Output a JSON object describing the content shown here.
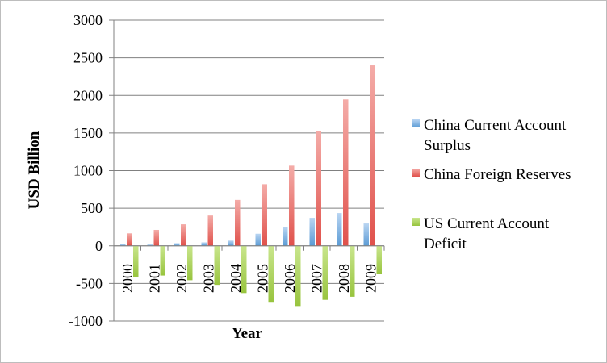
{
  "chart_data": {
    "type": "bar",
    "title": "",
    "xlabel": "Year",
    "ylabel": "USD Billion",
    "ylim": [
      -1000,
      3000
    ],
    "yticks": [
      3000,
      2500,
      2000,
      1500,
      1000,
      500,
      0,
      -500,
      -1000
    ],
    "grid": true,
    "legend_placement": "right",
    "categories": [
      "2000",
      "2001",
      "2002",
      "2003",
      "2004",
      "2005",
      "2006",
      "2007",
      "2008",
      "2009"
    ],
    "series": [
      {
        "name_lines": [
          "China Current Account",
          "Surplus"
        ],
        "color": "#5b9bd5",
        "values": [
          20,
          17,
          35,
          46,
          69,
          161,
          250,
          372,
          436,
          297
        ]
      },
      {
        "name_lines": [
          "China Foreign Reserves"
        ],
        "color": "#e8706b",
        "values": [
          166,
          212,
          286,
          403,
          610,
          819,
          1066,
          1528,
          1946,
          2399
        ]
      },
      {
        "name_lines": [
          "US Current Account",
          "Deficit"
        ],
        "color": "#a9d158",
        "values": [
          -410,
          -395,
          -457,
          -519,
          -628,
          -745,
          -800,
          -718,
          -677,
          -378
        ]
      }
    ]
  }
}
